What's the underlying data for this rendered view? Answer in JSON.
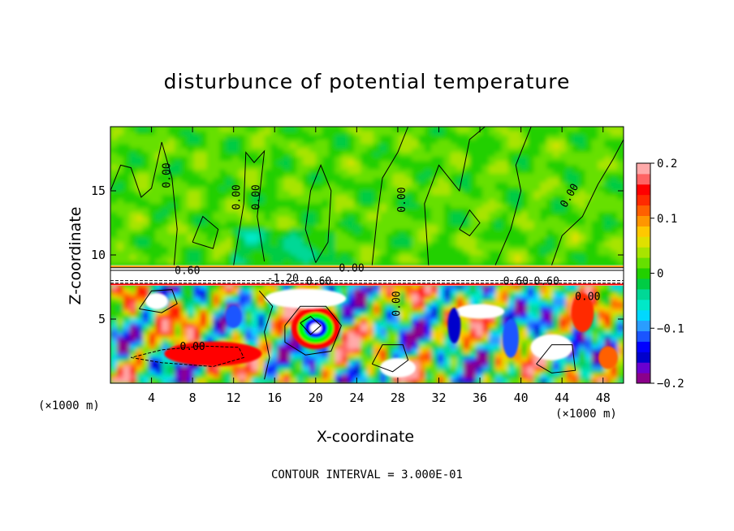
{
  "chart_data": {
    "type": "heatmap",
    "title": "disturbunce of potential temperature",
    "xlabel": "X-coordinate",
    "ylabel": "Z-coordinate",
    "x_unit": "(×1000 m)",
    "z_unit": "(×1000 m)",
    "xlim": [
      0,
      50
    ],
    "ylim": [
      0,
      20
    ],
    "x_ticks": [
      4,
      8,
      12,
      16,
      20,
      24,
      28,
      32,
      36,
      40,
      44,
      48
    ],
    "y_ticks": [
      5,
      10,
      15
    ],
    "colorbar": {
      "range": [
        -0.2,
        0.2
      ],
      "ticks": [
        0.2,
        0.1,
        0,
        -0.1,
        -0.2
      ],
      "tick_labels": [
        "0.2",
        "0.1",
        "0",
        "−0.1",
        "−0.2"
      ],
      "colors": [
        "#8b008b",
        "#6a00d0",
        "#0000cc",
        "#0000ff",
        "#1a55ff",
        "#2a9dff",
        "#00d8ff",
        "#00e8c8",
        "#00d896",
        "#00cc44",
        "#22d000",
        "#66e000",
        "#a8e400",
        "#e0e000",
        "#ffc800",
        "#ff9600",
        "#ff6000",
        "#ff2a00",
        "#ff0000",
        "#ff6464",
        "#ffaaaa"
      ]
    },
    "contour_labels": [
      "0.00",
      "0.00",
      "0.00",
      "0.00",
      "0.00",
      "0.60",
      "0.00",
      "-1.20",
      "0.60",
      "0.60",
      "0.60",
      "0.00",
      "0.00",
      "0.00"
    ],
    "contour_interval_text": "CONTOUR INTERVAL = 3.000E-01"
  }
}
